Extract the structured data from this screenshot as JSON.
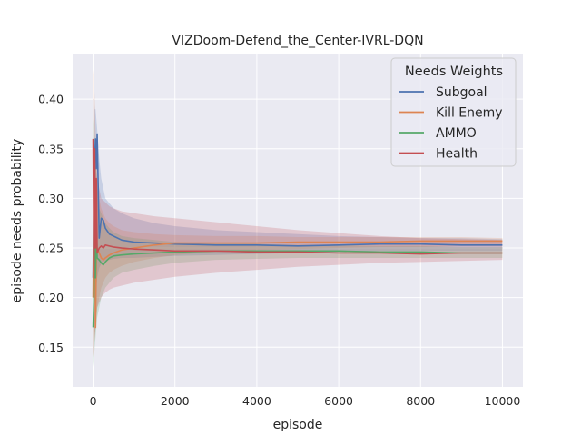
{
  "chart_data": {
    "type": "line",
    "title": "VIZDoom-Defend_the_Center-IVRL-DQN",
    "xlabel": "episode",
    "ylabel": "episode needs probability",
    "xlim": [
      -500,
      10500
    ],
    "ylim": [
      0.11,
      0.445
    ],
    "xticks": [
      0,
      2000,
      4000,
      6000,
      8000,
      10000
    ],
    "yticks": [
      0.15,
      0.2,
      0.25,
      0.3,
      0.35,
      0.4
    ],
    "ytick_labels": [
      "0.15",
      "0.20",
      "0.25",
      "0.30",
      "0.35",
      "0.40"
    ],
    "grid": true,
    "legend": {
      "title": "Needs Weights",
      "placement": "top-right"
    },
    "series": [
      {
        "name": "Subgoal",
        "color": "#4c72b0",
        "x": [
          0,
          20,
          40,
          60,
          80,
          100,
          150,
          200,
          250,
          300,
          400,
          500,
          700,
          1000,
          1500,
          2000,
          3000,
          4000,
          5000,
          6000,
          7000,
          8000,
          9000,
          10000
        ],
        "y": [
          0.22,
          0.3,
          0.34,
          0.36,
          0.33,
          0.365,
          0.26,
          0.28,
          0.278,
          0.27,
          0.264,
          0.262,
          0.258,
          0.256,
          0.255,
          0.254,
          0.253,
          0.253,
          0.252,
          0.253,
          0.254,
          0.254,
          0.253,
          0.253
        ],
        "lower": [
          0.13,
          0.16,
          0.18,
          0.2,
          0.21,
          0.22,
          0.23,
          0.234,
          0.236,
          0.237,
          0.238,
          0.239,
          0.24,
          0.24,
          0.241,
          0.242,
          0.243,
          0.244,
          0.245,
          0.246,
          0.247,
          0.247,
          0.247,
          0.247
        ],
        "upper": [
          0.4,
          0.4,
          0.39,
          0.39,
          0.38,
          0.37,
          0.34,
          0.32,
          0.31,
          0.3,
          0.295,
          0.29,
          0.285,
          0.28,
          0.275,
          0.272,
          0.268,
          0.266,
          0.264,
          0.262,
          0.261,
          0.26,
          0.26,
          0.259
        ]
      },
      {
        "name": "Kill Enemy",
        "color": "#dd8452",
        "x": [
          0,
          20,
          40,
          60,
          80,
          100,
          150,
          200,
          250,
          300,
          400,
          500,
          700,
          1000,
          1500,
          2000,
          3000,
          4000,
          5000,
          6000,
          7000,
          8000,
          9000,
          10000
        ],
        "y": [
          0.2,
          0.3,
          0.32,
          0.17,
          0.24,
          0.25,
          0.245,
          0.24,
          0.238,
          0.24,
          0.243,
          0.245,
          0.248,
          0.25,
          0.253,
          0.255,
          0.255,
          0.255,
          0.256,
          0.256,
          0.256,
          0.257,
          0.257,
          0.257
        ],
        "lower": [
          0.14,
          0.15,
          0.16,
          0.17,
          0.18,
          0.19,
          0.2,
          0.21,
          0.215,
          0.22,
          0.225,
          0.228,
          0.232,
          0.236,
          0.24,
          0.243,
          0.246,
          0.248,
          0.249,
          0.25,
          0.251,
          0.251,
          0.252,
          0.252
        ],
        "upper": [
          0.43,
          0.42,
          0.4,
          0.37,
          0.34,
          0.32,
          0.3,
          0.29,
          0.285,
          0.28,
          0.275,
          0.272,
          0.268,
          0.266,
          0.264,
          0.263,
          0.262,
          0.262,
          0.261,
          0.261,
          0.261,
          0.261,
          0.261,
          0.26
        ]
      },
      {
        "name": "AMMO",
        "color": "#55a868",
        "x": [
          0,
          20,
          40,
          60,
          80,
          100,
          150,
          200,
          250,
          300,
          400,
          500,
          700,
          1000,
          1500,
          2000,
          3000,
          4000,
          5000,
          6000,
          7000,
          8000,
          9000,
          10000
        ],
        "y": [
          0.17,
          0.2,
          0.32,
          0.22,
          0.27,
          0.24,
          0.238,
          0.235,
          0.233,
          0.236,
          0.24,
          0.242,
          0.243,
          0.244,
          0.245,
          0.246,
          0.247,
          0.247,
          0.247,
          0.247,
          0.246,
          0.246,
          0.245,
          0.245
        ],
        "lower": [
          0.13,
          0.14,
          0.15,
          0.16,
          0.17,
          0.18,
          0.19,
          0.2,
          0.205,
          0.21,
          0.215,
          0.22,
          0.225,
          0.228,
          0.232,
          0.235,
          0.238,
          0.239,
          0.24,
          0.24,
          0.24,
          0.24,
          0.24,
          0.24
        ],
        "upper": [
          0.38,
          0.37,
          0.36,
          0.35,
          0.33,
          0.31,
          0.29,
          0.285,
          0.28,
          0.275,
          0.27,
          0.266,
          0.262,
          0.26,
          0.258,
          0.256,
          0.255,
          0.254,
          0.253,
          0.253,
          0.252,
          0.252,
          0.251,
          0.251
        ]
      },
      {
        "name": "Health",
        "color": "#c44e52",
        "x": [
          0,
          20,
          40,
          60,
          80,
          100,
          150,
          200,
          250,
          300,
          400,
          500,
          700,
          1000,
          1500,
          2000,
          3000,
          4000,
          5000,
          6000,
          7000,
          8000,
          9000,
          10000
        ],
        "y": [
          0.36,
          0.22,
          0.35,
          0.25,
          0.32,
          0.245,
          0.25,
          0.252,
          0.25,
          0.253,
          0.252,
          0.251,
          0.25,
          0.249,
          0.248,
          0.247,
          0.247,
          0.246,
          0.246,
          0.245,
          0.245,
          0.244,
          0.245,
          0.245
        ],
        "lower": [
          0.14,
          0.15,
          0.16,
          0.17,
          0.18,
          0.19,
          0.195,
          0.2,
          0.203,
          0.205,
          0.208,
          0.21,
          0.212,
          0.215,
          0.218,
          0.221,
          0.225,
          0.228,
          0.231,
          0.233,
          0.235,
          0.236,
          0.237,
          0.238
        ],
        "upper": [
          0.36,
          0.36,
          0.35,
          0.34,
          0.33,
          0.32,
          0.31,
          0.3,
          0.298,
          0.296,
          0.292,
          0.29,
          0.287,
          0.285,
          0.282,
          0.28,
          0.276,
          0.272,
          0.268,
          0.265,
          0.262,
          0.26,
          0.259,
          0.258
        ]
      }
    ]
  }
}
